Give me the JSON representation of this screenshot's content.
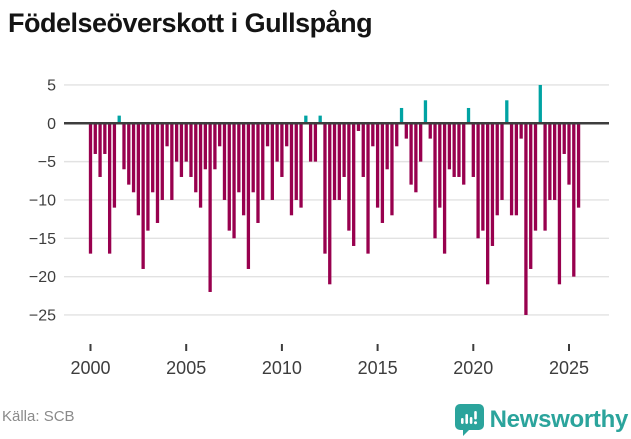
{
  "title": "Födelseöverskott i Gullspång",
  "footer": {
    "source": "Källa: SCB",
    "brand": "Newsworthy"
  },
  "colors": {
    "bar_negative": "#98004e",
    "bar_positive": "#00a3a3",
    "grid_line": "#e2e2e2",
    "zero_line": "#3d3d3d",
    "axis_text": "#3d3d3d",
    "tick_mark": "#3d3d3d",
    "title_text": "#141414",
    "source_text": "#8a8a8a",
    "brand_teal": "#2ba49c"
  },
  "chart_data": {
    "type": "bar",
    "title": "Födelseöverskott i Gullspång",
    "unit": "quarterly",
    "start": "2000 Q1",
    "end": "2025 Q3",
    "values": [
      -17,
      -4,
      -7,
      -4,
      -17,
      -11,
      1,
      -6,
      -8,
      -9,
      -12,
      -19,
      -14,
      -9,
      -13,
      -10,
      -3,
      -10,
      -5,
      -7,
      -5,
      -7,
      -9,
      -11,
      -6,
      -22,
      -6,
      -3,
      -10,
      -14,
      -15,
      -9,
      -12,
      -19,
      -9,
      -13,
      -10,
      -3,
      -10,
      -5,
      -7,
      -3,
      -12,
      -10,
      -11,
      1,
      -5,
      -5,
      1,
      -17,
      -21,
      -10,
      -10,
      -7,
      -14,
      -16,
      -1,
      -7,
      -17,
      -3,
      -11,
      -13,
      -6,
      -12,
      -3,
      2,
      -2,
      -8,
      -9,
      -5,
      3,
      -2,
      -15,
      -11,
      -17,
      -6,
      -7,
      -7,
      -8,
      2,
      -7,
      -15,
      -14,
      -21,
      -16,
      -12,
      -10,
      3,
      -12,
      -12,
      -2,
      -25,
      -19,
      -14,
      5,
      -14,
      -10,
      -10,
      -21,
      -4,
      -8,
      -20,
      -11
    ],
    "x_ticks": [
      2000,
      2005,
      2010,
      2015,
      2020,
      2025
    ],
    "y_ticks": [
      5,
      0,
      -5,
      -10,
      -15,
      -20,
      -25
    ],
    "ylim": [
      -27,
      6
    ],
    "grid": true,
    "legend": false,
    "xlabel": "",
    "ylabel": ""
  }
}
